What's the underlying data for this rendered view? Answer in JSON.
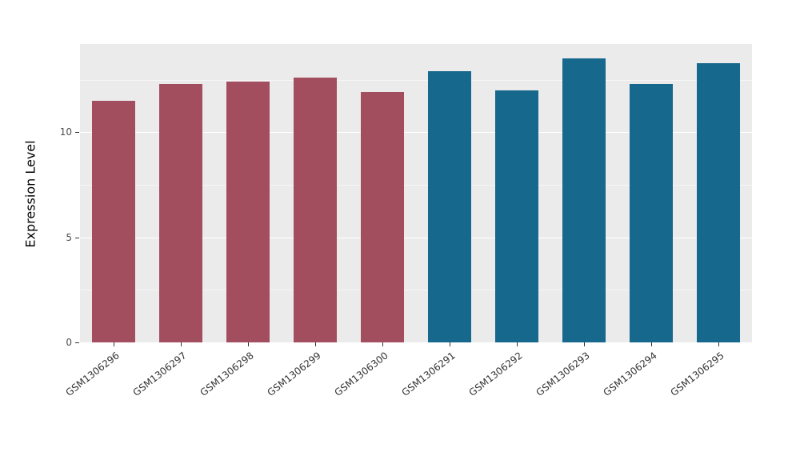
{
  "chart_data": {
    "type": "bar",
    "title": "",
    "xlabel": "",
    "ylabel": "Expression Level",
    "ylim": [
      0,
      14.2
    ],
    "yticks": [
      0,
      5,
      10
    ],
    "minor_yticks": [
      2.5,
      7.5,
      12.5
    ],
    "grid": true,
    "legend": "none",
    "panel_background": "#EBEBEB",
    "major_grid_color": "#FFFFFF",
    "categories": [
      "GSM1306296",
      "GSM1306297",
      "GSM1306298",
      "GSM1306299",
      "GSM1306300",
      "GSM1306291",
      "GSM1306292",
      "GSM1306293",
      "GSM1306294",
      "GSM1306295"
    ],
    "values": [
      11.5,
      12.3,
      12.4,
      12.6,
      11.9,
      12.9,
      12.0,
      13.5,
      12.3,
      13.3
    ],
    "bar_colors": [
      "#A34E5E",
      "#A34E5E",
      "#A34E5E",
      "#A34E5E",
      "#A34E5E",
      "#16688C",
      "#16688C",
      "#16688C",
      "#16688C",
      "#16688C"
    ],
    "groups": [
      {
        "name": "group-red",
        "color": "#A34E5E",
        "categories_count": 5
      },
      {
        "name": "group-blue",
        "color": "#16688C",
        "categories_count": 5
      }
    ]
  }
}
